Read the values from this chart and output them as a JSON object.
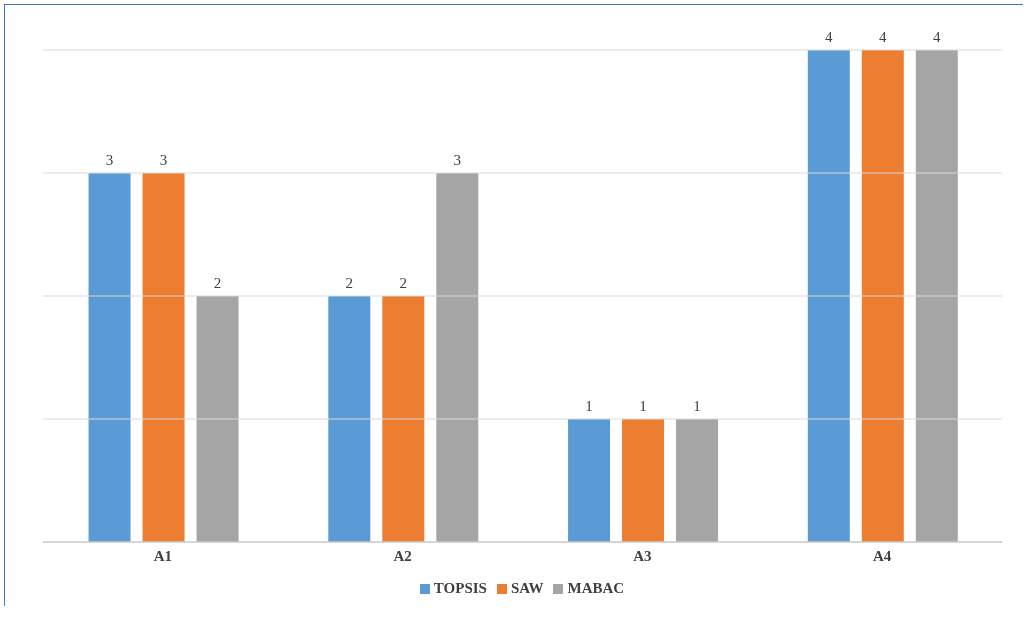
{
  "chart_data": {
    "type": "bar",
    "categories": [
      "A1",
      "A2",
      "A3",
      "A4"
    ],
    "series": [
      {
        "name": "TOPSIS",
        "color": "#5b9bd5",
        "values": [
          3,
          2,
          1,
          4
        ]
      },
      {
        "name": "SAW",
        "color": "#ed7d31",
        "values": [
          3,
          2,
          1,
          4
        ]
      },
      {
        "name": "MABAC",
        "color": "#a5a5a5",
        "values": [
          2,
          3,
          1,
          4
        ]
      }
    ],
    "ylim": [
      0,
      4
    ],
    "yticks": [
      {
        "value": 0,
        "label": null
      },
      {
        "value": 1,
        "label": null
      },
      {
        "value": 2,
        "label": null
      },
      {
        "value": 3,
        "label": null
      },
      {
        "value": 4,
        "label": null
      }
    ],
    "tick_labels": "x",
    "grid": "y",
    "legend": "bottom",
    "data_labels": true
  }
}
